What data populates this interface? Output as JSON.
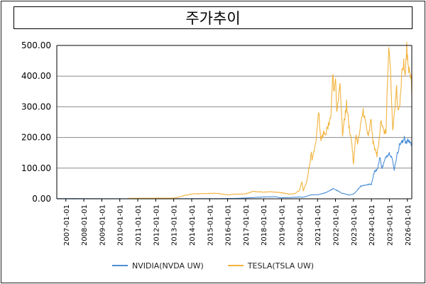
{
  "chart_data": {
    "type": "line",
    "title": "주가추이",
    "xlabel": "",
    "ylabel": "",
    "ylim": [
      0,
      500
    ],
    "yticks": [
      "0.00",
      "100.00",
      "200.00",
      "300.00",
      "400.00",
      "500.00"
    ],
    "xticks": [
      "2007-01-01",
      "2008-01-01",
      "2009-01-01",
      "2010-01-01",
      "2011-01-01",
      "2012-01-01",
      "2013-01-01",
      "2014-01-01",
      "2015-01-01",
      "2016-01-01",
      "2017-01-01",
      "2018-01-01",
      "2019-01-01",
      "2020-01-01",
      "2021-01-01",
      "2022-01-01",
      "2023-01-01",
      "2024-01-01",
      "2025-01-01",
      "2026-01-01"
    ],
    "xlim": [
      "2006-07-01",
      "2026-04-01"
    ],
    "grid": "horizontal",
    "legend_position": "bottom",
    "series": [
      {
        "name": "NVIDIA(NVDA UW)",
        "color": "#4a8fd8",
        "points": [
          [
            "2006-07-01",
            0.5
          ],
          [
            "2007-06-01",
            0.8
          ],
          [
            "2008-06-01",
            0.5
          ],
          [
            "2009-06-01",
            0.3
          ],
          [
            "2010-06-01",
            0.3
          ],
          [
            "2011-06-01",
            0.4
          ],
          [
            "2012-06-01",
            0.3
          ],
          [
            "2013-06-01",
            0.4
          ],
          [
            "2014-06-01",
            0.5
          ],
          [
            "2015-06-01",
            0.6
          ],
          [
            "2016-06-01",
            1.2
          ],
          [
            "2017-01-01",
            2.8
          ],
          [
            "2017-06-01",
            4
          ],
          [
            "2018-01-01",
            6
          ],
          [
            "2018-09-01",
            7
          ],
          [
            "2018-12-01",
            3.5
          ],
          [
            "2019-06-01",
            4
          ],
          [
            "2020-01-01",
            6
          ],
          [
            "2020-03-15",
            5
          ],
          [
            "2020-09-01",
            13
          ],
          [
            "2021-01-01",
            13
          ],
          [
            "2021-06-01",
            19
          ],
          [
            "2021-11-20",
            33
          ],
          [
            "2022-01-01",
            30
          ],
          [
            "2022-05-01",
            19
          ],
          [
            "2022-10-10",
            12
          ],
          [
            "2023-01-01",
            15
          ],
          [
            "2023-03-01",
            25
          ],
          [
            "2023-06-01",
            42
          ],
          [
            "2023-09-01",
            45
          ],
          [
            "2024-01-01",
            48
          ],
          [
            "2024-03-01",
            90
          ],
          [
            "2024-05-01",
            95
          ],
          [
            "2024-06-20",
            135
          ],
          [
            "2024-08-05",
            100
          ],
          [
            "2024-11-01",
            140
          ],
          [
            "2025-01-06",
            150
          ],
          [
            "2025-02-20",
            135
          ],
          [
            "2025-04-07",
            95
          ],
          [
            "2025-06-01",
            140
          ],
          [
            "2025-08-01",
            180
          ],
          [
            "2025-10-01",
            185
          ],
          [
            "2025-11-01",
            205
          ],
          [
            "2025-12-01",
            180
          ],
          [
            "2026-01-15",
            190
          ],
          [
            "2026-03-01",
            185
          ],
          [
            "2026-03-31",
            175
          ]
        ]
      },
      {
        "name": "TESLA(TSLA UW)",
        "color": "#f2b33e",
        "points": [
          [
            "2010-07-01",
            1.5
          ],
          [
            "2011-06-01",
            1.8
          ],
          [
            "2012-06-01",
            2
          ],
          [
            "2013-01-01",
            2.3
          ],
          [
            "2013-05-01",
            6
          ],
          [
            "2013-09-01",
            12
          ],
          [
            "2014-02-01",
            16
          ],
          [
            "2014-09-01",
            17
          ],
          [
            "2015-06-01",
            18
          ],
          [
            "2016-01-01",
            13
          ],
          [
            "2016-06-01",
            15
          ],
          [
            "2017-01-01",
            16
          ],
          [
            "2017-06-01",
            24
          ],
          [
            "2018-01-01",
            22
          ],
          [
            "2018-06-01",
            23
          ],
          [
            "2019-01-01",
            20
          ],
          [
            "2019-06-01",
            15
          ],
          [
            "2019-10-01",
            17
          ],
          [
            "2020-01-01",
            28
          ],
          [
            "2020-02-20",
            58
          ],
          [
            "2020-03-18",
            25
          ],
          [
            "2020-06-01",
            60
          ],
          [
            "2020-08-31",
            150
          ],
          [
            "2020-09-10",
            125
          ],
          [
            "2020-11-30",
            190
          ],
          [
            "2021-01-26",
            290
          ],
          [
            "2021-03-05",
            190
          ],
          [
            "2021-05-01",
            215
          ],
          [
            "2021-06-01",
            205
          ],
          [
            "2021-08-01",
            235
          ],
          [
            "2021-10-01",
            260
          ],
          [
            "2021-11-04",
            409
          ],
          [
            "2021-12-01",
            350
          ],
          [
            "2022-01-03",
            399
          ],
          [
            "2022-01-27",
            280
          ],
          [
            "2022-04-04",
            380
          ],
          [
            "2022-05-24",
            210
          ],
          [
            "2022-08-15",
            310
          ],
          [
            "2022-10-01",
            240
          ],
          [
            "2022-12-01",
            180
          ],
          [
            "2023-01-03",
            110
          ],
          [
            "2023-02-16",
            210
          ],
          [
            "2023-04-01",
            180
          ],
          [
            "2023-07-18",
            290
          ],
          [
            "2023-09-01",
            250
          ],
          [
            "2023-10-31",
            200
          ],
          [
            "2023-12-27",
            260
          ],
          [
            "2024-02-01",
            185
          ],
          [
            "2024-04-22",
            142
          ],
          [
            "2024-06-01",
            180
          ],
          [
            "2024-07-10",
            263
          ],
          [
            "2024-09-01",
            220
          ],
          [
            "2024-10-23",
            215
          ],
          [
            "2024-11-12",
            330
          ],
          [
            "2024-12-17",
            479
          ],
          [
            "2025-01-21",
            420
          ],
          [
            "2025-03-10",
            222
          ],
          [
            "2025-04-01",
            260
          ],
          [
            "2025-05-28",
            360
          ],
          [
            "2025-06-10",
            300
          ],
          [
            "2025-08-01",
            310
          ],
          [
            "2025-09-15",
            420
          ],
          [
            "2025-10-20",
            440
          ],
          [
            "2025-11-15",
            400
          ],
          [
            "2025-12-20",
            489
          ],
          [
            "2026-01-20",
            430
          ],
          [
            "2026-02-20",
            420
          ],
          [
            "2026-03-20",
            395
          ],
          [
            "2026-03-31",
            340
          ]
        ]
      }
    ]
  }
}
